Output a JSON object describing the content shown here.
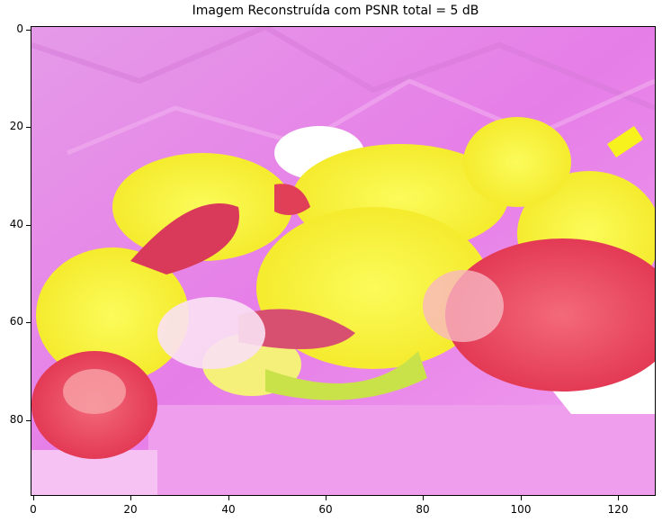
{
  "title": "Imagem Reconstruída com PSNR total = 5 dB",
  "axes": {
    "x_ticks": [
      "0",
      "20",
      "40",
      "60",
      "80",
      "100",
      "120"
    ],
    "y_ticks": [
      "0",
      "20",
      "40",
      "60",
      "80"
    ]
  },
  "image": {
    "description_colors": {
      "background": "#e98ae8",
      "yellow": "#f7f21e",
      "red": "#e83a55",
      "white": "#ffffff"
    }
  }
}
